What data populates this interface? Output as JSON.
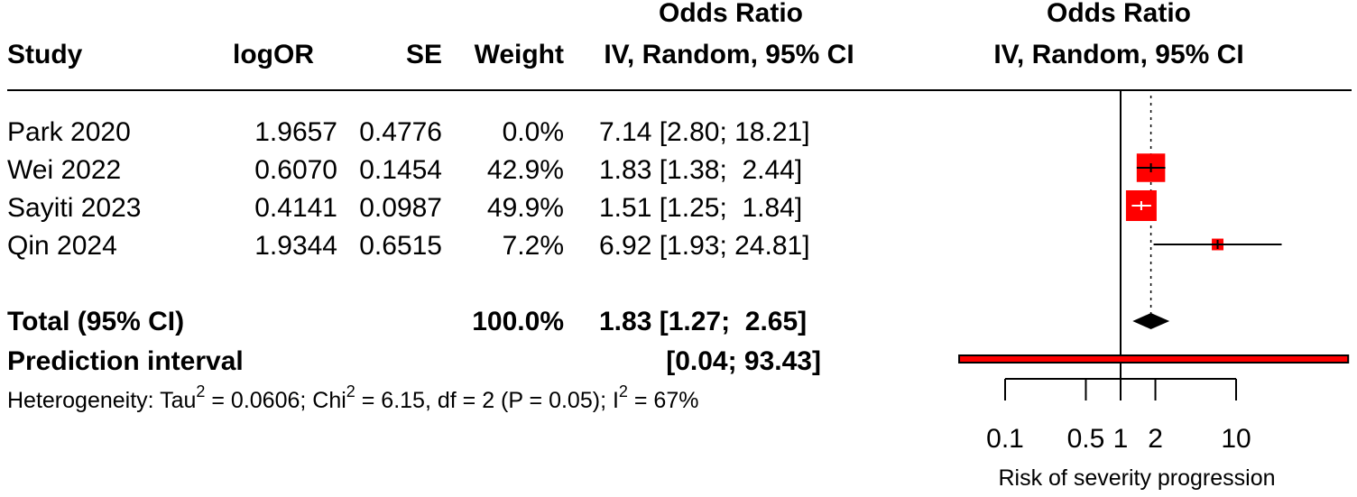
{
  "chart_data": {
    "type": "forest",
    "columns": {
      "study": "Study",
      "logor": "logOR",
      "se": "SE",
      "weight": "Weight",
      "or_line1": "Odds Ratio",
      "or_line2": "IV, Random, 95% CI",
      "plot_line1": "Odds Ratio",
      "plot_line2": "IV, Random, 95% CI"
    },
    "studies": [
      {
        "name": "Park 2020",
        "logor": "1.9657",
        "se": "0.4776",
        "weight_label": "0.0%",
        "ci_label": "7.14 [2.80; 18.21]",
        "or": 7.14,
        "lower": 2.8,
        "upper": 18.21,
        "weight": 0.0
      },
      {
        "name": "Wei 2022",
        "logor": "0.6070",
        "se": "0.1454",
        "weight_label": "42.9%",
        "ci_label": "1.83 [1.38;  2.44]",
        "or": 1.83,
        "lower": 1.38,
        "upper": 2.44,
        "weight": 42.9
      },
      {
        "name": "Sayiti 2023",
        "logor": "0.4141",
        "se": "0.0987",
        "weight_label": "49.9%",
        "ci_label": "1.51 [1.25;  1.84]",
        "or": 1.51,
        "lower": 1.25,
        "upper": 1.84,
        "weight": 49.9
      },
      {
        "name": "Qin 2024",
        "logor": "1.9344",
        "se": "0.6515",
        "weight_label": "7.2%",
        "ci_label": "6.92 [1.93; 24.81]",
        "or": 6.92,
        "lower": 1.93,
        "upper": 24.81,
        "weight": 7.2
      }
    ],
    "total": {
      "label": "Total (95% CI)",
      "weight_label": "100.0%",
      "ci_label": "1.83 [1.27;  2.65]",
      "or": 1.83,
      "lower": 1.27,
      "upper": 2.65
    },
    "prediction": {
      "label": "Prediction interval",
      "ci_label": "[0.04; 93.43]",
      "lower": 0.04,
      "upper": 93.43
    },
    "heterogeneity": {
      "prefix": "Heterogeneity: Tau",
      "sup1": "2",
      "tau_text": " = 0.0606; Chi",
      "sup2": "2",
      "chi_text": " = 6.15, df = 2 (P = 0.05); I",
      "sup3": "2",
      "i2_text": " = 67%"
    },
    "axis": {
      "scale": "log",
      "ticks": [
        0.1,
        0.5,
        1,
        2,
        10
      ],
      "tick_labels": [
        "0.1",
        "0.5",
        "1",
        "2",
        "10"
      ],
      "xlabel": "Risk of severity progression",
      "null_value": 1
    },
    "colors": {
      "box": "#ff0000",
      "line": "#000000",
      "diamond": "#000000",
      "prediction": "#ff0000"
    }
  }
}
